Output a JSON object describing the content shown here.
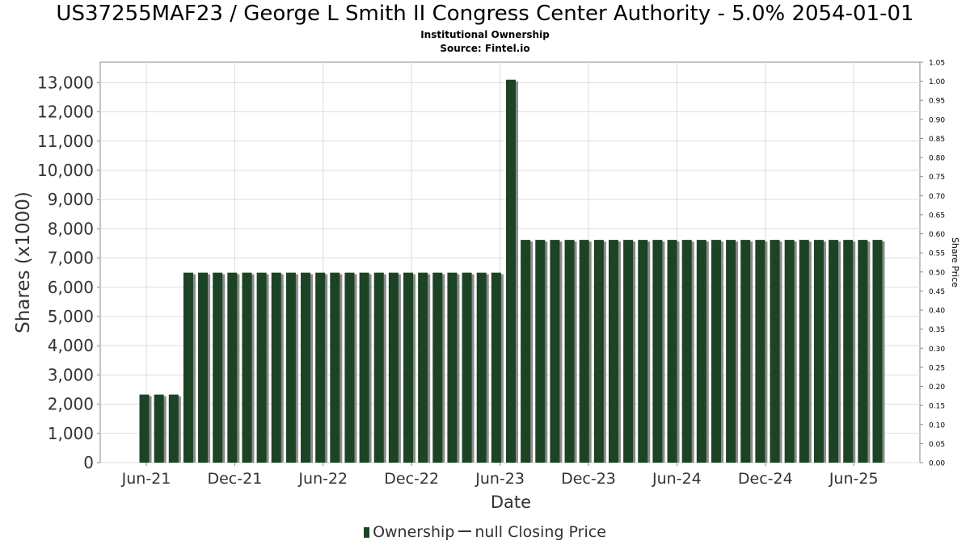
{
  "chart_data": {
    "type": "bar",
    "title": "US37255MAF23 / George L Smith II Congress Center Authority - 5.0% 2054-01-01",
    "subtitle": "Institutional Ownership",
    "source": "Source: Fintel.io",
    "xlabel": "Date",
    "ylabel": "Shares (x1000)",
    "ylabel_right": "Share Price",
    "ylim": [
      0,
      13700
    ],
    "ylim_right": [
      0,
      1.05
    ],
    "x_ticks": [
      "Jun-21",
      "Dec-21",
      "Jun-22",
      "Dec-22",
      "Jun-23",
      "Dec-23",
      "Jun-24",
      "Dec-24",
      "Jun-25"
    ],
    "y_ticks": [
      "0",
      "1,000",
      "2,000",
      "3,000",
      "4,000",
      "5,000",
      "6,000",
      "7,000",
      "8,000",
      "9,000",
      "10,000",
      "11,000",
      "12,000",
      "13,000"
    ],
    "y_right_ticks": [
      "0.00",
      "0.05",
      "0.10",
      "0.15",
      "0.20",
      "0.25",
      "0.30",
      "0.35",
      "0.40",
      "0.45",
      "0.50",
      "0.55",
      "0.60",
      "0.65",
      "0.70",
      "0.75",
      "0.80",
      "0.85",
      "0.90",
      "0.95",
      "1.00",
      "1.05"
    ],
    "grid": true,
    "legend_position": "bottom",
    "series": [
      {
        "name": "Ownership",
        "color": "#1c4424",
        "values": [
          2330,
          2330,
          2330,
          6500,
          6500,
          6500,
          6500,
          6500,
          6500,
          6500,
          6500,
          6500,
          6500,
          6500,
          6500,
          6500,
          6500,
          6500,
          6500,
          6500,
          6500,
          6500,
          6500,
          6500,
          6500,
          13100,
          7620,
          7620,
          7620,
          7620,
          7620,
          7620,
          7620,
          7620,
          7620,
          7620,
          7620,
          7620,
          7620,
          7620,
          7620,
          7620,
          7620,
          7620,
          7620,
          7620,
          7620,
          7620,
          7620,
          7620,
          7620
        ]
      },
      {
        "name": "null Closing Price",
        "color": "#333333",
        "values": []
      }
    ]
  }
}
